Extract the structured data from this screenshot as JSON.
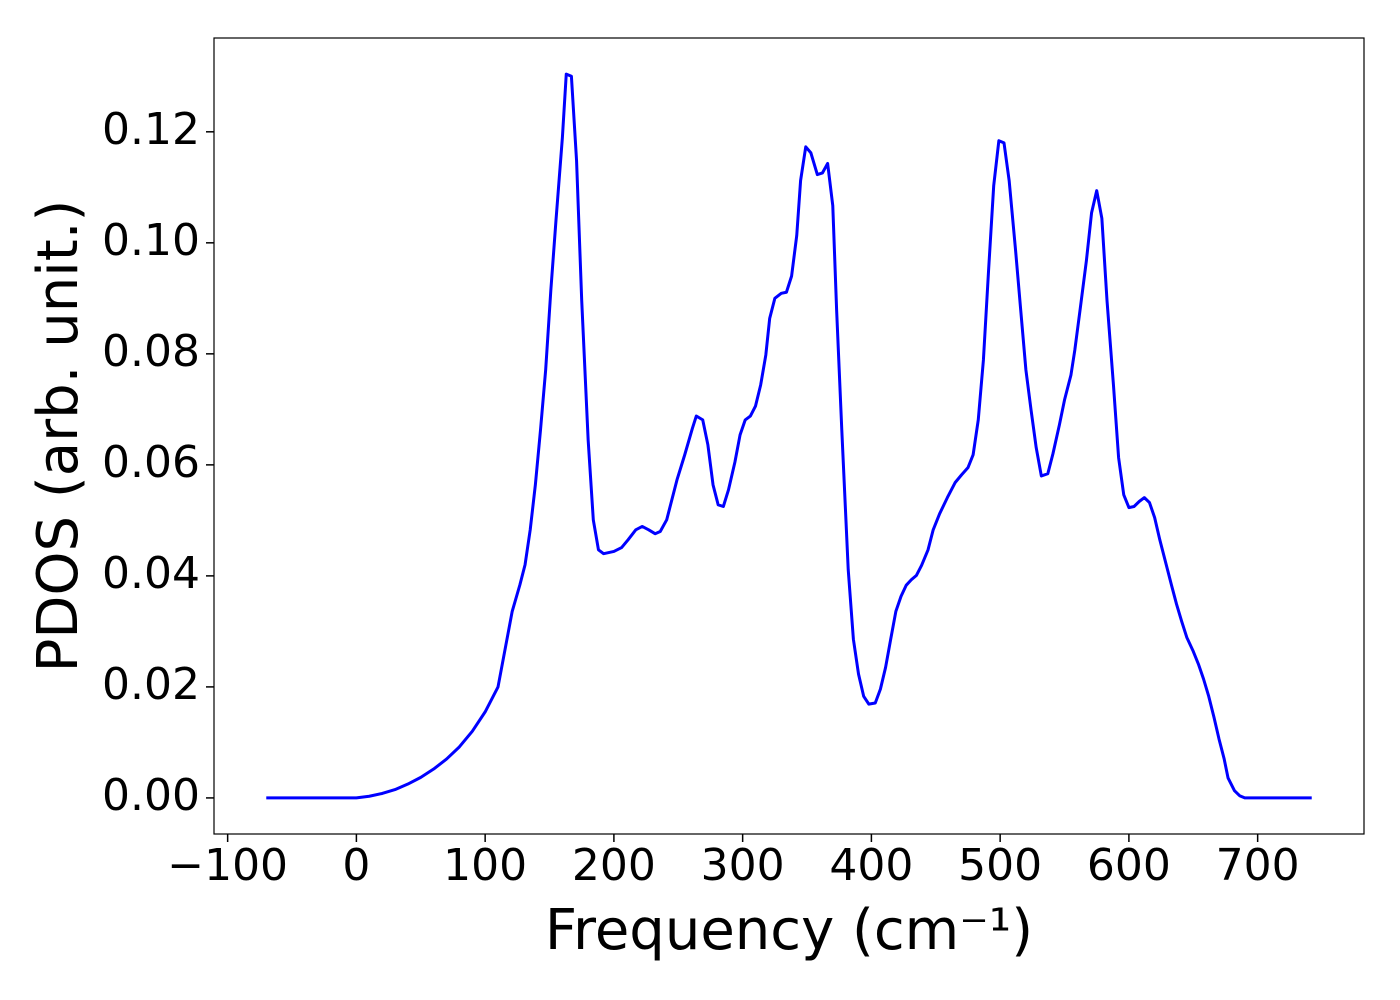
{
  "chart_data": {
    "type": "line",
    "x_label": "Frequency (cm⁻¹)",
    "y_label": "PDOS (arb. unit.)",
    "x": [
      -70,
      -50,
      -30,
      -10,
      0,
      10,
      20,
      30,
      40,
      50,
      60,
      70,
      80,
      90,
      100,
      110,
      121,
      127,
      131,
      135,
      139,
      143,
      147,
      151,
      155,
      160,
      163,
      167,
      171,
      175,
      180,
      184,
      188,
      192,
      200,
      206,
      211,
      217,
      222,
      227,
      232,
      236,
      241,
      249,
      255,
      261,
      264,
      269,
      273,
      277,
      281,
      285,
      289,
      294,
      298,
      302,
      306,
      310,
      314,
      318,
      321,
      325,
      330,
      334,
      338,
      342,
      345,
      349,
      353,
      358,
      362,
      366,
      370,
      373,
      377,
      382,
      386,
      390,
      394,
      398,
      403,
      407,
      411,
      415,
      419,
      423,
      427,
      431,
      435,
      439,
      444,
      448,
      453,
      459,
      465,
      470,
      475,
      479,
      483,
      487,
      491,
      495,
      499,
      503,
      507,
      512,
      516,
      520,
      524,
      528,
      532,
      537,
      541,
      546,
      550,
      555,
      558,
      562,
      567,
      571,
      575,
      579,
      583,
      588,
      592,
      596,
      600,
      604,
      608,
      612,
      616,
      620,
      624,
      629,
      633,
      637,
      641,
      645,
      650,
      654,
      658,
      662,
      666,
      670,
      674,
      677,
      682,
      686,
      690,
      742
    ],
    "series": [
      {
        "color": "#0000ff",
        "values": [
          0,
          0,
          0,
          0,
          0,
          0.0003,
          0.0008,
          0.0015,
          0.0025,
          0.0037,
          0.0052,
          0.007,
          0.0092,
          0.012,
          0.0155,
          0.02,
          0.0336,
          0.0384,
          0.042,
          0.0483,
          0.0564,
          0.0663,
          0.0771,
          0.0914,
          0.104,
          0.119,
          0.1304,
          0.13,
          0.1148,
          0.0896,
          0.0645,
          0.0501,
          0.0447,
          0.044,
          0.0444,
          0.0451,
          0.0465,
          0.0483,
          0.0489,
          0.0483,
          0.0476,
          0.048,
          0.0501,
          0.0573,
          0.0618,
          0.0666,
          0.0688,
          0.0681,
          0.0636,
          0.0564,
          0.0528,
          0.0525,
          0.0555,
          0.0605,
          0.0654,
          0.0681,
          0.0688,
          0.0706,
          0.0744,
          0.0798,
          0.0864,
          0.09,
          0.0909,
          0.0911,
          0.094,
          0.1013,
          0.1112,
          0.1173,
          0.1162,
          0.1123,
          0.1126,
          0.1143,
          0.1067,
          0.0878,
          0.0663,
          0.0411,
          0.0286,
          0.0223,
          0.0183,
          0.0169,
          0.0171,
          0.0196,
          0.0235,
          0.0286,
          0.0336,
          0.0363,
          0.0383,
          0.0393,
          0.0401,
          0.0419,
          0.0447,
          0.0483,
          0.0512,
          0.0541,
          0.0568,
          0.0582,
          0.0595,
          0.0618,
          0.0681,
          0.0789,
          0.095,
          0.1103,
          0.1184,
          0.118,
          0.1112,
          0.0986,
          0.0878,
          0.0771,
          0.0699,
          0.0631,
          0.058,
          0.0584,
          0.062,
          0.0672,
          0.0717,
          0.0762,
          0.0807,
          0.0878,
          0.0968,
          0.1054,
          0.1094,
          0.1044,
          0.0896,
          0.0744,
          0.0613,
          0.0546,
          0.0523,
          0.0525,
          0.0534,
          0.0541,
          0.0532,
          0.0505,
          0.0465,
          0.042,
          0.0384,
          0.0349,
          0.0318,
          0.0289,
          0.0264,
          0.0241,
          0.0214,
          0.0183,
          0.0146,
          0.0106,
          0.007,
          0.0036,
          0.0013,
          0.0004,
          0,
          0
        ]
      }
    ],
    "xlim": [
      -110.6,
      782.6
    ],
    "ylim": [
      -0.0065,
      0.1369
    ],
    "xticks": [
      {
        "value": -100,
        "label": "−100"
      },
      0,
      100,
      200,
      300,
      400,
      500,
      600,
      700
    ],
    "yticks": [
      {
        "value": 0,
        "label": "0.00"
      },
      {
        "value": 0.02,
        "label": "0.02"
      },
      {
        "value": 0.04,
        "label": "0.04"
      },
      {
        "value": 0.06,
        "label": "0.06"
      },
      {
        "value": 0.08,
        "label": "0.08"
      },
      {
        "value": 0.1,
        "label": "0.10"
      },
      {
        "value": 0.12,
        "label": "0.12"
      }
    ],
    "grid": false
  }
}
